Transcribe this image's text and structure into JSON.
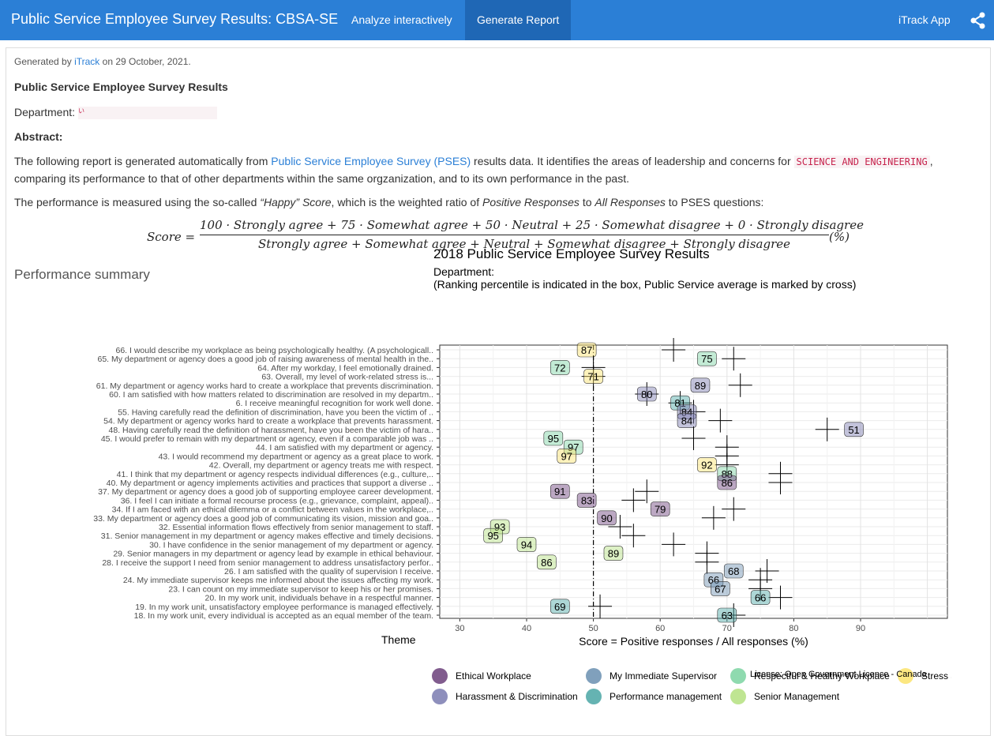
{
  "navbar": {
    "title": "Public Service Employee Survey Results: CBSA-SE",
    "links": [
      "Analyze interactively",
      "Generate Report"
    ],
    "right_link": "iTrack App",
    "share_icon": "share-icon"
  },
  "report": {
    "generated_prefix": "Generated by",
    "generated_link": "iTrack",
    "generated_suffix": "on 29 October, 2021.",
    "heading": "Public Service Employee Survey Results",
    "department_label": "Department:",
    "department_value": "い",
    "abstract_label": "Abstract:",
    "p1_a": "The following report is generated automatically from",
    "p1_link": "Public Service Employee Survey (PSES)",
    "p1_b": "results data. It identifies the areas of leadership and concerns for",
    "p1_code": "SCIENCE AND ENGINEERING",
    "p1_c": ", comparing its performance to that of other departments within the same orgzanization, and to its own performance in the past.",
    "p2_a": "The performance is measured using the so-called",
    "p2_em1": "“Happy” Score",
    "p2_b": ", which is the weighted ratio of",
    "p2_em2": "Positive Responses",
    "p2_c": "to",
    "p2_em3": "All Responses",
    "p2_d": "to PSES questions:",
    "formula_lhs": "Score =",
    "formula_num": "100 · Strongly agree + 75 · Somewhat agree + 50 · Neutral + 25 · Somewhat disagree + 0 · Strongly disagree",
    "formula_den": "Strongly agree + Somewhat agree + Neutral + Somewhat disagree + Strongly disagree",
    "formula_unit": "(%)",
    "section": "Performance summary"
  },
  "chart_data": {
    "type": "scatter",
    "title": "2018 Public Service Employee Survey Results",
    "subtitle_line1": "Department:",
    "subtitle_line2": "(Ranking percentile is indicated in the box, Public Service average is marked by cross)",
    "xlabel": "Score = Positive responses / All responses (%)",
    "xlim": [
      27,
      103
    ],
    "xticks": [
      30,
      40,
      50,
      60,
      70,
      80,
      90
    ],
    "reference_x": 50,
    "legend_title": "Theme",
    "themes": [
      {
        "name": "Ethical Workplace",
        "color": "#6b3f7a"
      },
      {
        "name": "Harassment & Discrimination",
        "color": "#7a7bb0"
      },
      {
        "name": "My Immediate Supervisor",
        "color": "#6a8fb0"
      },
      {
        "name": "Performance management",
        "color": "#4aa6a4"
      },
      {
        "name": "Respectful & Healthy Workplace",
        "color": "#7bd3a1"
      },
      {
        "name": "Senior Management",
        "color": "#b4e07f"
      },
      {
        "name": "Stress a",
        "color": "#fbe36b"
      }
    ],
    "questions": [
      {
        "label": "66. I would describe my workplace as being psychologically healthy.    (A psychologicall..",
        "score": 49,
        "rank": 87,
        "avg": 62,
        "theme": 6
      },
      {
        "label": "65. My department or agency does a good job of raising awareness of mental health in the..",
        "score": 67,
        "rank": 75,
        "avg": 71,
        "theme": 4
      },
      {
        "label": "64. After my workday, I feel emotionally drained.",
        "score": 45,
        "rank": 72,
        "avg": 50,
        "theme": 4
      },
      {
        "label": "63. Overall, my level of work-related stress is...",
        "score": 50,
        "rank": 71,
        "avg": 50,
        "theme": 6
      },
      {
        "label": "61. My department or agency works hard to create a workplace that prevents discrimination.",
        "score": 66,
        "rank": 89,
        "avg": 72,
        "theme": 1
      },
      {
        "label": "60. I am satisfied with how matters related to discrimination are resolved in my departm..",
        "score": 58,
        "rank": 80,
        "avg": 58,
        "theme": 1
      },
      {
        "label": "6. I receive meaningful recognition for work well done.",
        "score": 63,
        "rank": 81,
        "avg": 63,
        "theme": 3
      },
      {
        "label": "55. Having carefully read the definition of discrimination, have you been the victim of ..",
        "score": 64,
        "rank": 84,
        "avg": 65,
        "theme": 1
      },
      {
        "label": "54. My department or agency works hard to create a workplace that prevents harassment.",
        "score": 64,
        "rank": 84,
        "avg": 69,
        "theme": 1
      },
      {
        "label": "48. Having carefully read the definition of harassment, have you been the victim of hara..",
        "score": 89,
        "rank": 51,
        "avg": 85,
        "theme": 1
      },
      {
        "label": "45. I would prefer to remain with my department or agency, even if a comparable job was ..",
        "score": 44,
        "rank": 95,
        "avg": 65,
        "theme": 4
      },
      {
        "label": "44. I am satisfied with my department or agency.",
        "score": 47,
        "rank": 97,
        "avg": 70,
        "theme": 4
      },
      {
        "label": "43. I would recommend my department or agency as a great place to work.",
        "score": 46,
        "rank": 97,
        "avg": 70,
        "theme": 6
      },
      {
        "label": "42. Overall, my department or agency treats me with respect.",
        "score": 67,
        "rank": 92,
        "avg": 70,
        "theme": 6
      },
      {
        "label": "41. I think that my department or agency respects individual differences (e.g., culture,..",
        "score": 70,
        "rank": 88,
        "avg": 78,
        "theme": 4
      },
      {
        "label": "40. My department or agency implements activities and practices  that support a diverse ..",
        "score": 70,
        "rank": 86,
        "avg": 78,
        "theme": 0
      },
      {
        "label": "37. My department or agency does a good job of supporting employee career development.",
        "score": 45,
        "rank": 91,
        "avg": 58,
        "theme": 0
      },
      {
        "label": "36. I feel I can initiate a formal recourse process (e.g., grievance, complaint, appeal)..",
        "score": 49,
        "rank": 83,
        "avg": 56,
        "theme": 0
      },
      {
        "label": "34. If I am faced with an ethical dilemma or a conflict between values in the workplace,..",
        "score": 60,
        "rank": 79,
        "avg": 71,
        "theme": 0
      },
      {
        "label": "33. My department or agency does a good job of communicating its vision, mission and goa..",
        "score": 52,
        "rank": 90,
        "avg": 68,
        "theme": 0
      },
      {
        "label": "32. Essential information flows effectively from senior management to staff.",
        "score": 36,
        "rank": 93,
        "avg": 54,
        "theme": 5
      },
      {
        "label": "31. Senior management in my department or agency makes effective and timely decisions.",
        "score": 35,
        "rank": 95,
        "avg": 56,
        "theme": 5
      },
      {
        "label": "30. I have confidence in the senior management of my department or agency.",
        "score": 40,
        "rank": 94,
        "avg": 62,
        "theme": 5
      },
      {
        "label": "29. Senior managers in my department or agency lead by example in ethical behaviour.",
        "score": 53,
        "rank": 89,
        "avg": 67,
        "theme": 5
      },
      {
        "label": "28. I receive the support I need from senior management to address unsatisfactory perfor..",
        "score": 43,
        "rank": 86,
        "avg": 67,
        "theme": 5
      },
      {
        "label": "26. I am satisfied with the quality of supervision I receive.",
        "score": 71,
        "rank": 68,
        "avg": 76,
        "theme": 2
      },
      {
        "label": "24. My immediate supervisor keeps me informed about the issues affecting my work.",
        "score": 68,
        "rank": 66,
        "avg": 75,
        "theme": 2
      },
      {
        "label": "23. I can count on my immediate supervisor to keep his or her promises.",
        "score": 69,
        "rank": 67,
        "avg": 75,
        "theme": 2
      },
      {
        "label": "20. In my work unit, individuals behave in a respectful manner.",
        "score": 75,
        "rank": 66,
        "avg": 78,
        "theme": 3
      },
      {
        "label": "19. In my work unit, unsatisfactory employee performance is managed effectively.",
        "score": 45,
        "rank": 69,
        "avg": 51,
        "theme": 3
      },
      {
        "label": "18. In my work unit, every individual is accepted as an equal member of the team.",
        "score": 70,
        "rank": 63,
        "avg": 71,
        "theme": 3
      }
    ],
    "grid": true
  },
  "license": "License: Open Government Licence - Canada"
}
